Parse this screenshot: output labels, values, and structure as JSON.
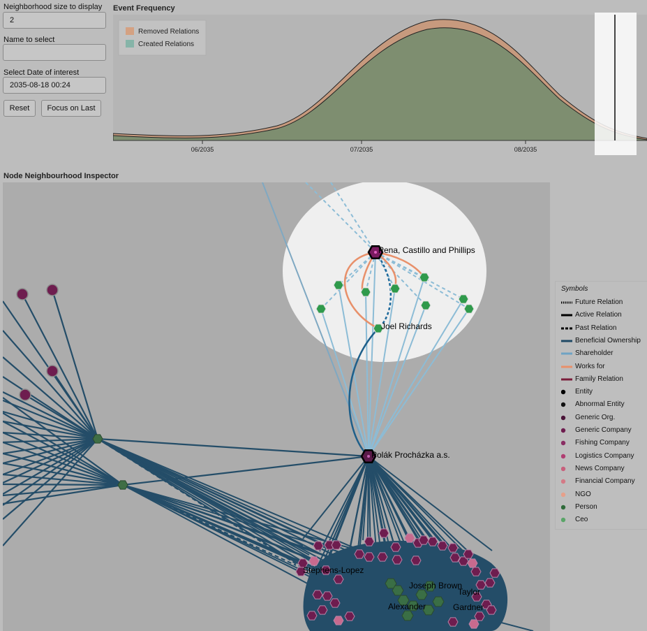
{
  "controls": {
    "neighborhood_size": {
      "label": "Neighborhood size to display",
      "value": "2"
    },
    "name_select": {
      "label": "Name to select",
      "value": ""
    },
    "date_of_interest": {
      "label": "Select Date of interest",
      "value": "2035-08-18 00:24"
    },
    "reset_label": "Reset",
    "focus_label": "Focus on Last"
  },
  "event_frequency": {
    "title": "Event Frequency",
    "legend": [
      {
        "label": "Removed Relations",
        "color": "#d4a182"
      },
      {
        "label": "Created Relations",
        "color": "#86b4a8"
      }
    ],
    "x_ticks": [
      "06/2035",
      "07/2035",
      "08/2035"
    ]
  },
  "inspector": {
    "title": "Node Neighbourhood Inspector",
    "node_labels": {
      "pena": "Pena, Castillo and Phillips",
      "joel": "Joel Richards",
      "polak": "Polák Procházka a.s.",
      "stephens": "Stephens-Lopez",
      "cluster": [
        "Joseph Brown",
        "Taylor",
        "Gardner",
        "Alexander"
      ]
    }
  },
  "legend": {
    "title": "Symbols",
    "items": [
      {
        "label": "Future Relation",
        "kind": "dotted",
        "color": "#000000"
      },
      {
        "label": "Active Relation",
        "kind": "solid",
        "color": "#000000"
      },
      {
        "label": "Past Relation",
        "kind": "dashed",
        "color": "#000000"
      },
      {
        "label": "Beneficial Ownership",
        "kind": "line",
        "color": "#204a66"
      },
      {
        "label": "Shareholder",
        "kind": "line",
        "color": "#6fa3c4"
      },
      {
        "label": "Works for",
        "kind": "line",
        "color": "#e8906a"
      },
      {
        "label": "Family Relation",
        "kind": "line",
        "color": "#7a1e3a"
      },
      {
        "label": "Entity",
        "kind": "dot",
        "color": "#000000"
      },
      {
        "label": "Abnormal Entity",
        "kind": "dot",
        "color": "#111111"
      },
      {
        "label": "Generic Org.",
        "kind": "dot",
        "color": "#4a1438"
      },
      {
        "label": "Generic Company",
        "kind": "dot",
        "color": "#6e1d4f"
      },
      {
        "label": "Fishing Company",
        "kind": "dot",
        "color": "#8a2d63"
      },
      {
        "label": "Logistics Company",
        "kind": "dot",
        "color": "#b03e72"
      },
      {
        "label": "News Company",
        "kind": "dot",
        "color": "#c8607c"
      },
      {
        "label": "Financial Company",
        "kind": "dot",
        "color": "#d47a86"
      },
      {
        "label": "NGO",
        "kind": "dot",
        "color": "#e6a08a"
      },
      {
        "label": "Person",
        "kind": "dot",
        "color": "#2f6b3a"
      },
      {
        "label": "Ceo",
        "kind": "dot",
        "color": "#5aa568"
      }
    ]
  }
}
